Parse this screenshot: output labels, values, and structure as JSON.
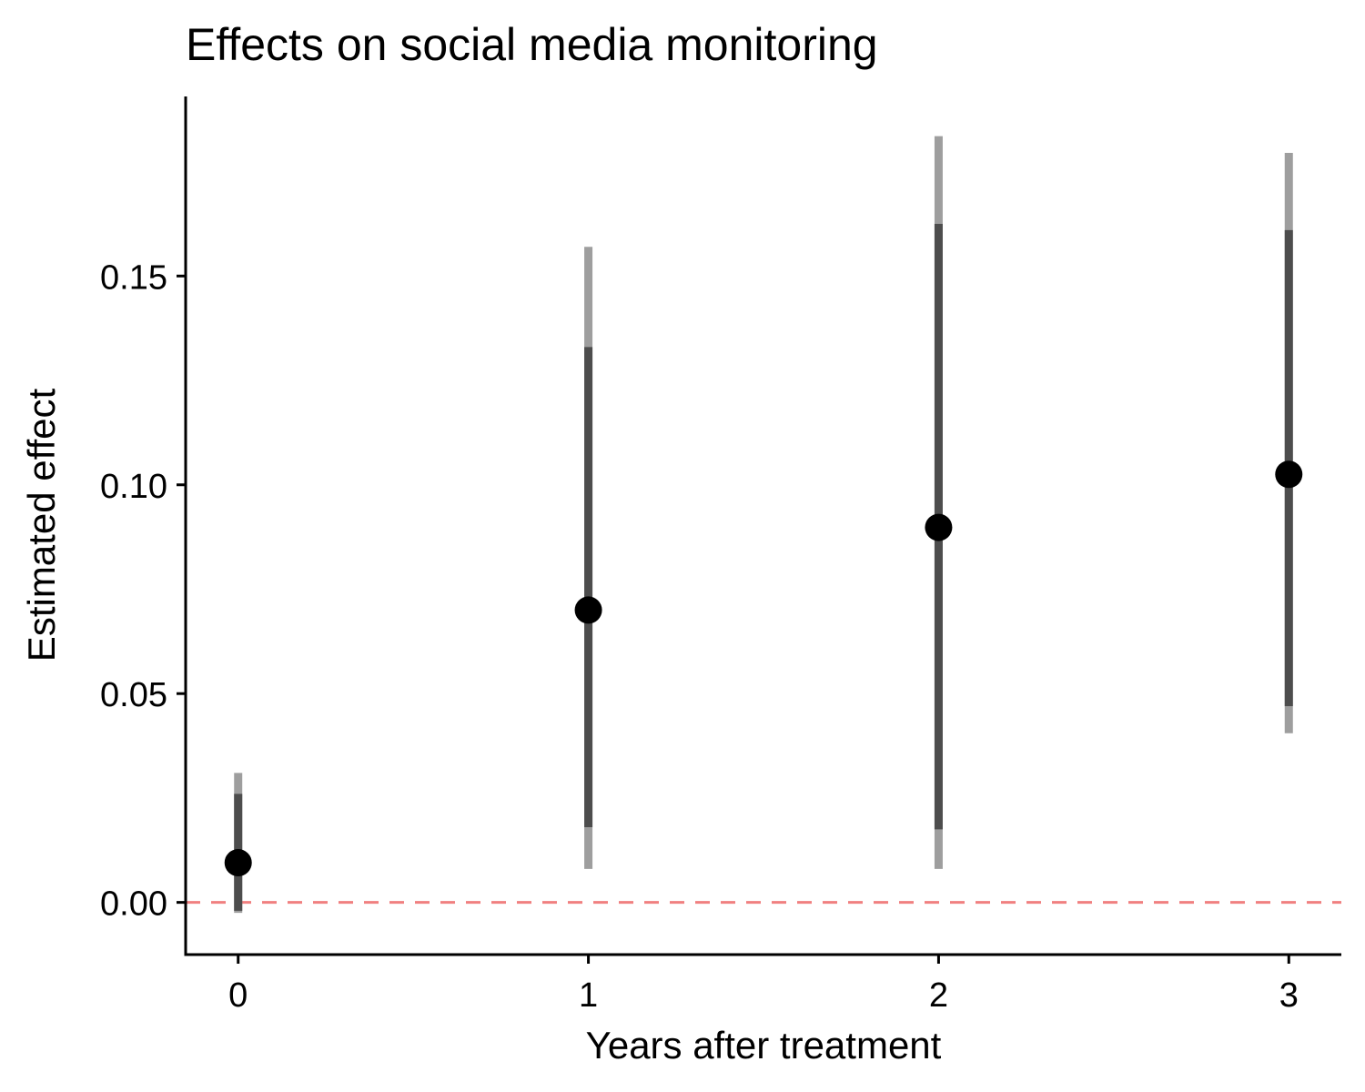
{
  "chart_data": {
    "type": "scatter",
    "title": "Effects on social media monitoring",
    "xlabel": "Years after treatment",
    "ylabel": "Estimated effect",
    "x": [
      0,
      1,
      2,
      3
    ],
    "x_tick_labels": [
      "0",
      "1",
      "2",
      "3"
    ],
    "y_ticks": [
      0.0,
      0.05,
      0.1,
      0.15
    ],
    "y_tick_labels": [
      "0.00",
      "0.05",
      "0.10",
      "0.15"
    ],
    "ylim": [
      -0.0125,
      0.193
    ],
    "xlim": [
      -0.15,
      3.15
    ],
    "estimates": [
      0.0095,
      0.07,
      0.0898,
      0.1025
    ],
    "ci_inner": [
      [
        -0.002,
        0.026
      ],
      [
        0.018,
        0.133
      ],
      [
        0.0175,
        0.1625
      ],
      [
        0.047,
        0.161
      ]
    ],
    "ci_outer": [
      [
        -0.0025,
        0.031
      ],
      [
        0.008,
        0.157
      ],
      [
        0.008,
        0.1835
      ],
      [
        0.0405,
        0.1795
      ]
    ],
    "reference_line": {
      "y": 0.0,
      "style": "dashed",
      "color": "#F08080"
    },
    "colors": {
      "point": "#000000",
      "inner_ci": "#4d4d4d",
      "outer_ci": "#9e9e9e"
    },
    "grid": false,
    "legend": "none"
  }
}
